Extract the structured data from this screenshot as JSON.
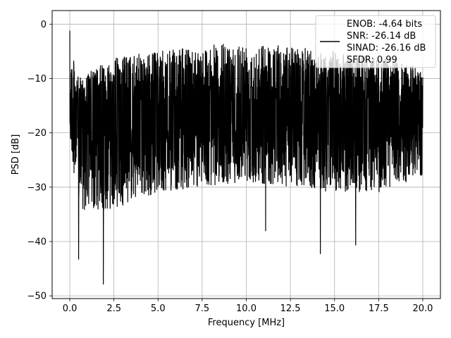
{
  "chart_data": {
    "type": "line",
    "xlabel": "Frequency [MHz]",
    "ylabel": "PSD [dB]",
    "xlim": [
      -1.0,
      21.0
    ],
    "ylim": [
      -50.5,
      2.5
    ],
    "xticks": [
      0.0,
      2.5,
      5.0,
      7.5,
      10.0,
      12.5,
      15.0,
      17.5,
      20.0
    ],
    "xtick_labels": [
      "0.0",
      "2.5",
      "5.0",
      "7.5",
      "10.0",
      "12.5",
      "15.0",
      "17.5",
      "20.0"
    ],
    "yticks": [
      0,
      -10,
      -20,
      -30,
      -40,
      -50
    ],
    "ytick_labels": [
      "0",
      "−10",
      "−20",
      "−30",
      "−40",
      "−50"
    ],
    "grid": true,
    "legend_placement": "top-right",
    "series": [
      {
        "name": "ENOB: -4.64 bits\nSNR: -26.14 dB\nSINAD: -26.16 dB\nSFDR: 0.99",
        "color": "#000000",
        "x_start": 0.0,
        "x_end": 20.0,
        "noise_floor_db": -17.0,
        "envelope": {
          "x": [
            0.0,
            0.1,
            0.5,
            1.0,
            2.5,
            5.0,
            7.5,
            10.0,
            12.5,
            15.0,
            17.5,
            20.0
          ],
          "upper": [
            -1.2,
            -5.0,
            -10.0,
            -9.0,
            -6.0,
            -5.0,
            -4.0,
            -3.0,
            -4.0,
            -5.0,
            -6.0,
            -8.0
          ],
          "lower": [
            -20.0,
            -24.0,
            -34.0,
            -35.0,
            -34.0,
            -31.0,
            -30.0,
            -29.0,
            -30.0,
            -31.0,
            -31.0,
            -28.0
          ]
        },
        "notable_minima": [
          {
            "x": 0.5,
            "y": -43.3
          },
          {
            "x": 1.9,
            "y": -47.9
          },
          {
            "x": 14.2,
            "y": -42.3
          },
          {
            "x": 16.2,
            "y": -40.7
          },
          {
            "x": 11.1,
            "y": -38.1
          }
        ]
      }
    ],
    "legend_lines": [
      "ENOB: -4.64 bits",
      "SNR: -26.14 dB",
      "SINAD: -26.16 dB",
      "SFDR: 0.99"
    ]
  }
}
